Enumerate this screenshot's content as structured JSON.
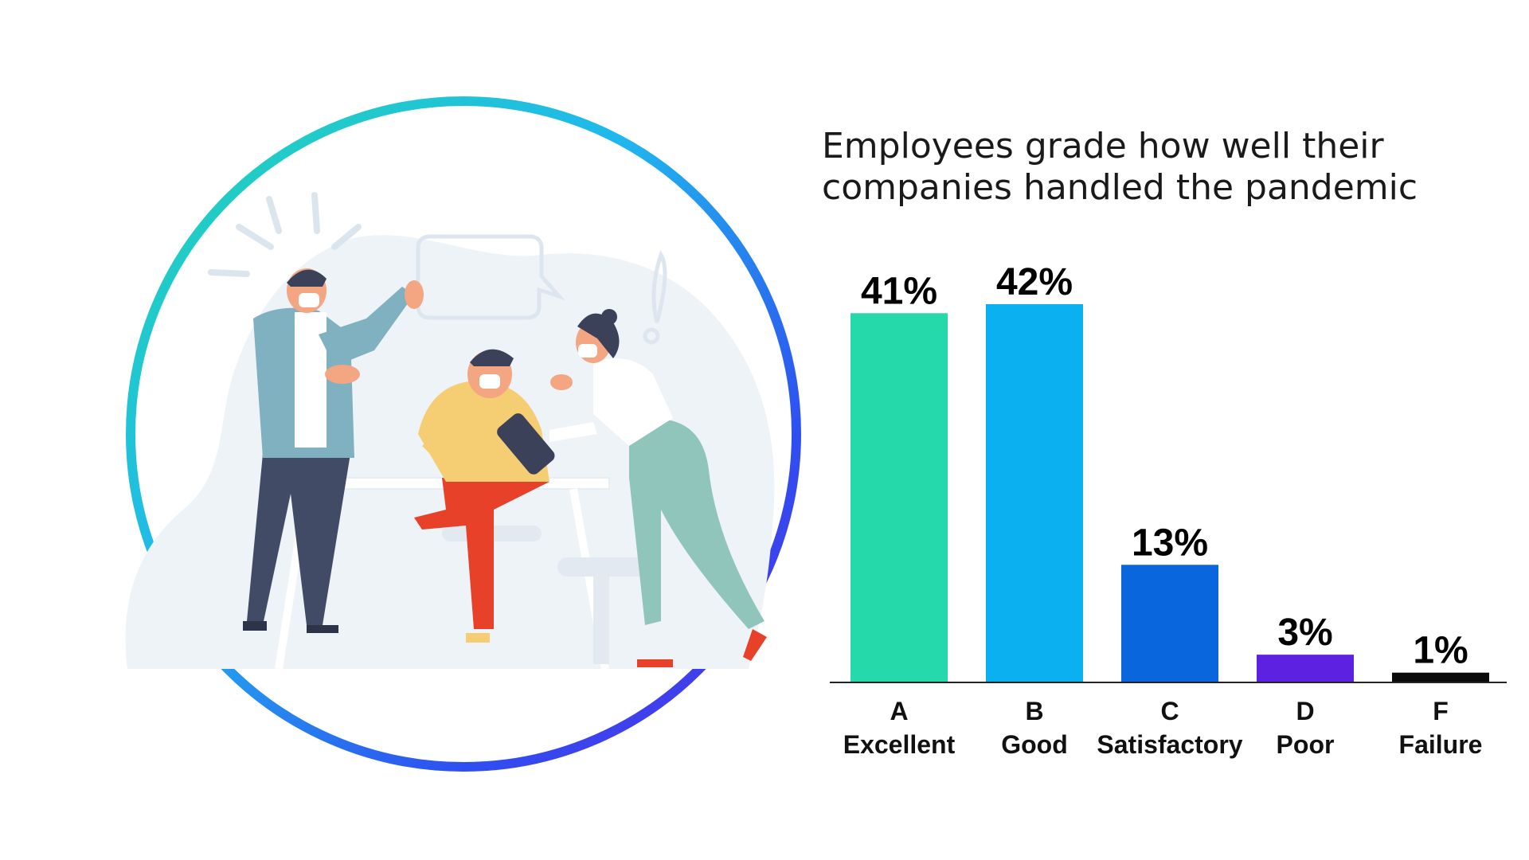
{
  "chart_data": {
    "type": "bar",
    "title_lines": [
      "Employees grade how well their",
      "companies handled the pandemic"
    ],
    "categories": [
      {
        "grade": "A",
        "label": "Excellent"
      },
      {
        "grade": "B",
        "label": "Good"
      },
      {
        "grade": "C",
        "label": "Satisfactory"
      },
      {
        "grade": "D",
        "label": "Poor"
      },
      {
        "grade": "F",
        "label": "Failure"
      }
    ],
    "values": [
      41,
      42,
      13,
      3,
      1
    ],
    "value_labels": [
      "41%",
      "42%",
      "13%",
      "3%",
      "1%"
    ],
    "colors": [
      "#25d9ab",
      "#0ab0ef",
      "#0a66dd",
      "#5d21e2",
      "#0a0a0a"
    ],
    "ylim": [
      0,
      42
    ],
    "grid": false,
    "legend": "none"
  },
  "illustration": {
    "ring_colors": [
      "#22d8b0",
      "#1fb7ee",
      "#2e4ff0",
      "#5a28e6"
    ]
  }
}
